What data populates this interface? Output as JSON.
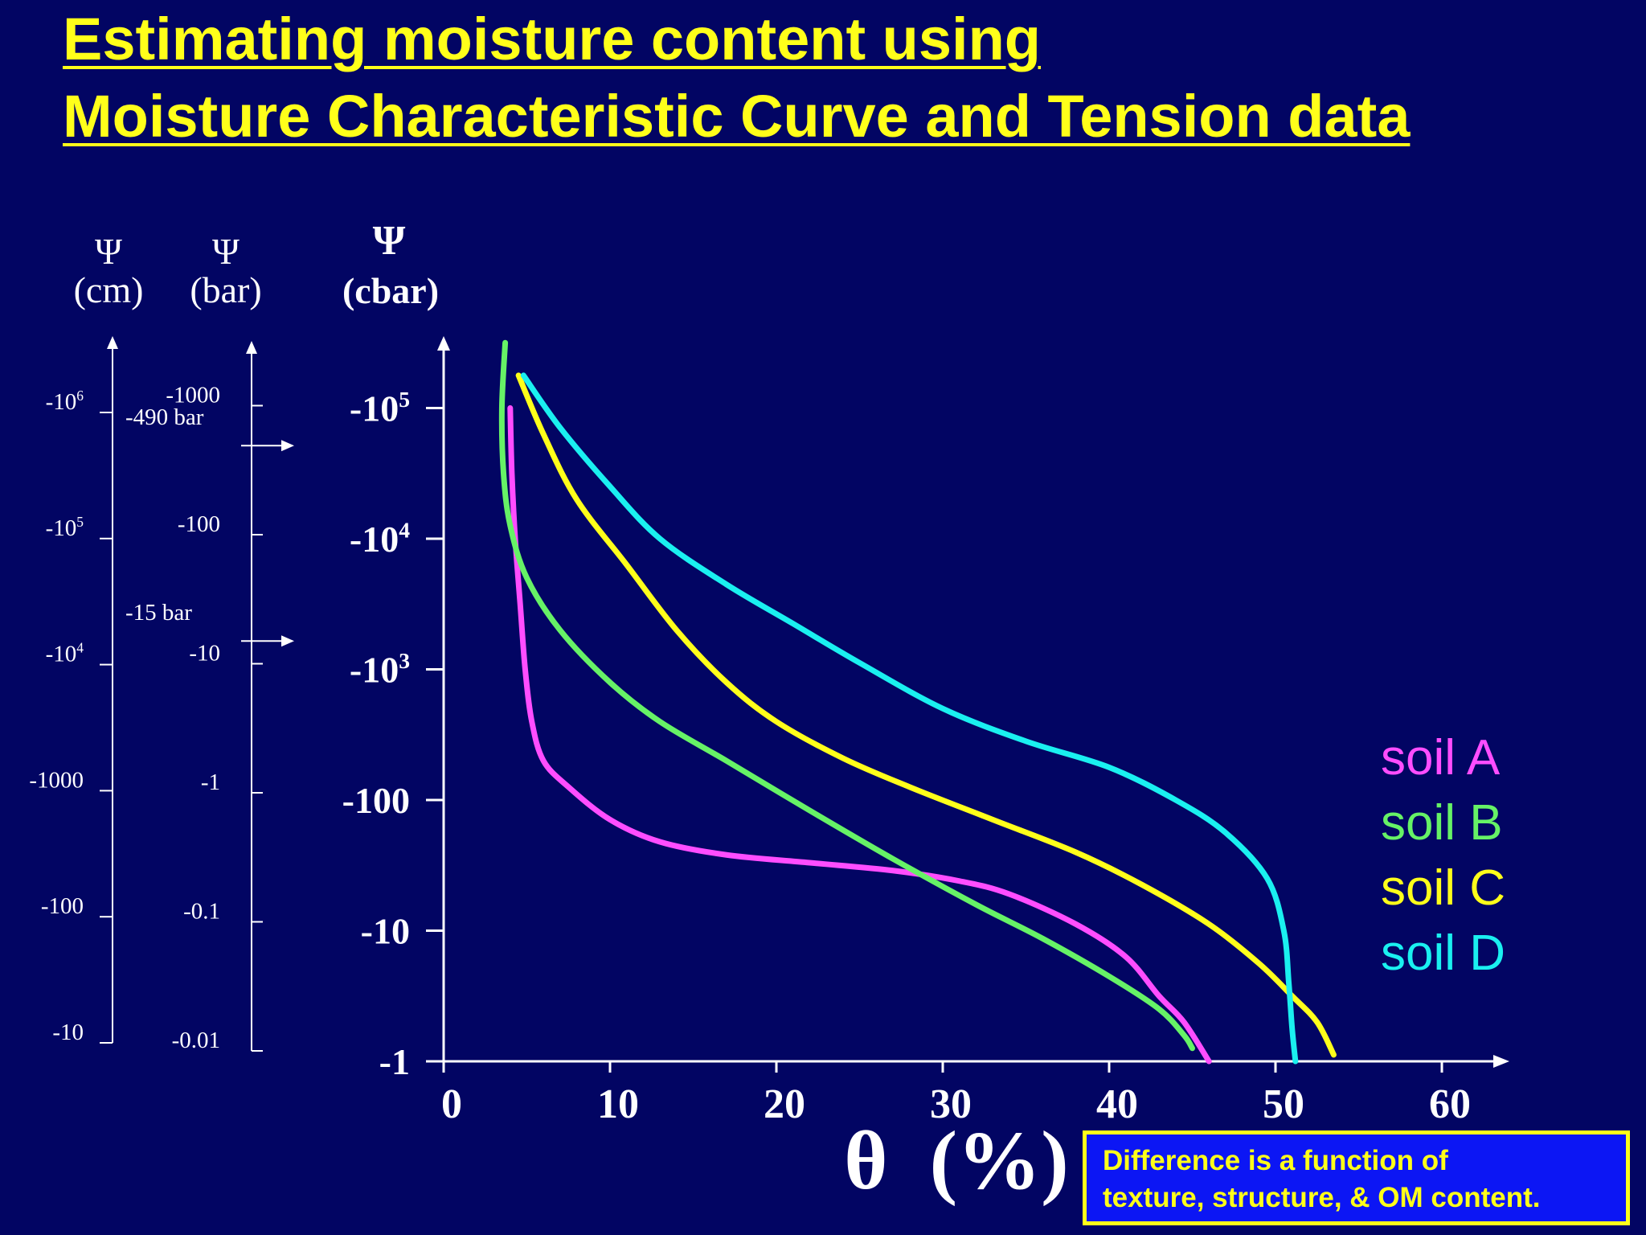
{
  "title": {
    "line1": "Estimating moisture content using",
    "line2": "Moisture Characteristic Curve and Tension data"
  },
  "note": {
    "line1": "Difference is a function of",
    "line2": "texture, structure, & OM content."
  },
  "colors": {
    "background": "#020563",
    "title": "#ffff1a",
    "axis": "#ffffff",
    "note_bg": "#0c16f4"
  },
  "chart_data": {
    "type": "line",
    "xlabel": "θ (%)",
    "ylabel": "Ψ (cbar)",
    "xlim": [
      0,
      60
    ],
    "ylim_log10_of_negative_cbar": [
      0,
      5.5
    ],
    "y_scale": "log",
    "grid": false,
    "legend_position": "right",
    "x_ticks": [
      "0",
      "10",
      "20",
      "30",
      "40",
      "50",
      "60"
    ],
    "y_ticks": [
      {
        "base": "-1",
        "sup": ""
      },
      {
        "base": "-10",
        "sup": ""
      },
      {
        "base": "-100",
        "sup": ""
      },
      {
        "base": "-10",
        "sup": "3"
      },
      {
        "base": "-10",
        "sup": "4"
      },
      {
        "base": "-10",
        "sup": "5"
      }
    ],
    "secondary_axes": [
      {
        "label_symbol": "Ψ",
        "label_unit": "(cm)",
        "ticks": [
          {
            "base": "-10",
            "sup": ""
          },
          {
            "base": "-100",
            "sup": ""
          },
          {
            "base": "-1000",
            "sup": ""
          },
          {
            "base": "-10",
            "sup": "4"
          },
          {
            "base": "-10",
            "sup": "5"
          },
          {
            "base": "-10",
            "sup": "6"
          }
        ]
      },
      {
        "label_symbol": "Ψ",
        "label_unit": "(bar)",
        "ticks": [
          {
            "base": "-0.01",
            "sup": ""
          },
          {
            "base": "-0.1",
            "sup": ""
          },
          {
            "base": "-1",
            "sup": ""
          },
          {
            "base": "-10",
            "sup": ""
          },
          {
            "base": "-100",
            "sup": ""
          },
          {
            "base": "-1000",
            "sup": ""
          }
        ]
      }
    ],
    "primary_axis_label_symbol": "Ψ",
    "primary_axis_label_unit": "(cbar)",
    "annotations": [
      {
        "text": "-490 bar",
        "value_bar": -490
      },
      {
        "text": "-15 bar",
        "value_bar": -15
      }
    ],
    "series": [
      {
        "name": "soil A",
        "color": "#ff4dff",
        "points": [
          [
            4.0,
            5.0
          ],
          [
            4.1,
            4.5
          ],
          [
            4.3,
            4.0
          ],
          [
            4.6,
            3.5
          ],
          [
            4.9,
            3.0
          ],
          [
            5.3,
            2.6
          ],
          [
            6.0,
            2.3
          ],
          [
            7.5,
            2.1
          ],
          [
            10,
            1.85
          ],
          [
            13,
            1.68
          ],
          [
            17,
            1.58
          ],
          [
            22,
            1.52
          ],
          [
            27,
            1.46
          ],
          [
            31,
            1.38
          ],
          [
            34,
            1.28
          ],
          [
            38,
            1.05
          ],
          [
            41,
            0.8
          ],
          [
            43,
            0.5
          ],
          [
            44.5,
            0.3
          ],
          [
            46,
            0
          ]
        ]
      },
      {
        "name": "soil B",
        "color": "#66f266",
        "points": [
          [
            3.7,
            5.5
          ],
          [
            3.5,
            5.0
          ],
          [
            3.6,
            4.5
          ],
          [
            4.0,
            4.1
          ],
          [
            5.0,
            3.7
          ],
          [
            7,
            3.3
          ],
          [
            10,
            2.9
          ],
          [
            13,
            2.6
          ],
          [
            17,
            2.3
          ],
          [
            22,
            1.92
          ],
          [
            27,
            1.55
          ],
          [
            32,
            1.2
          ],
          [
            36,
            0.94
          ],
          [
            40,
            0.65
          ],
          [
            43,
            0.4
          ],
          [
            44.5,
            0.2
          ],
          [
            45,
            0.1
          ]
        ]
      },
      {
        "name": "soil C",
        "color": "#ffff1a",
        "points": [
          [
            4.5,
            5.25
          ],
          [
            6,
            4.8
          ],
          [
            8,
            4.3
          ],
          [
            11,
            3.8
          ],
          [
            14,
            3.3
          ],
          [
            17,
            2.9
          ],
          [
            20,
            2.6
          ],
          [
            24,
            2.32
          ],
          [
            28,
            2.1
          ],
          [
            33,
            1.85
          ],
          [
            38,
            1.6
          ],
          [
            42,
            1.35
          ],
          [
            46,
            1.05
          ],
          [
            49,
            0.75
          ],
          [
            51,
            0.5
          ],
          [
            52.5,
            0.3
          ],
          [
            53.5,
            0.05
          ]
        ]
      },
      {
        "name": "soil D",
        "color": "#1af0f0",
        "points": [
          [
            4.8,
            5.25
          ],
          [
            7,
            4.85
          ],
          [
            10,
            4.4
          ],
          [
            13,
            4.0
          ],
          [
            17,
            3.65
          ],
          [
            21,
            3.35
          ],
          [
            25,
            3.05
          ],
          [
            30,
            2.7
          ],
          [
            35,
            2.45
          ],
          [
            40,
            2.25
          ],
          [
            44,
            2.0
          ],
          [
            47,
            1.75
          ],
          [
            49.5,
            1.4
          ],
          [
            50.5,
            1.0
          ],
          [
            50.8,
            0.6
          ],
          [
            51,
            0.25
          ],
          [
            51.2,
            0
          ]
        ]
      }
    ]
  }
}
